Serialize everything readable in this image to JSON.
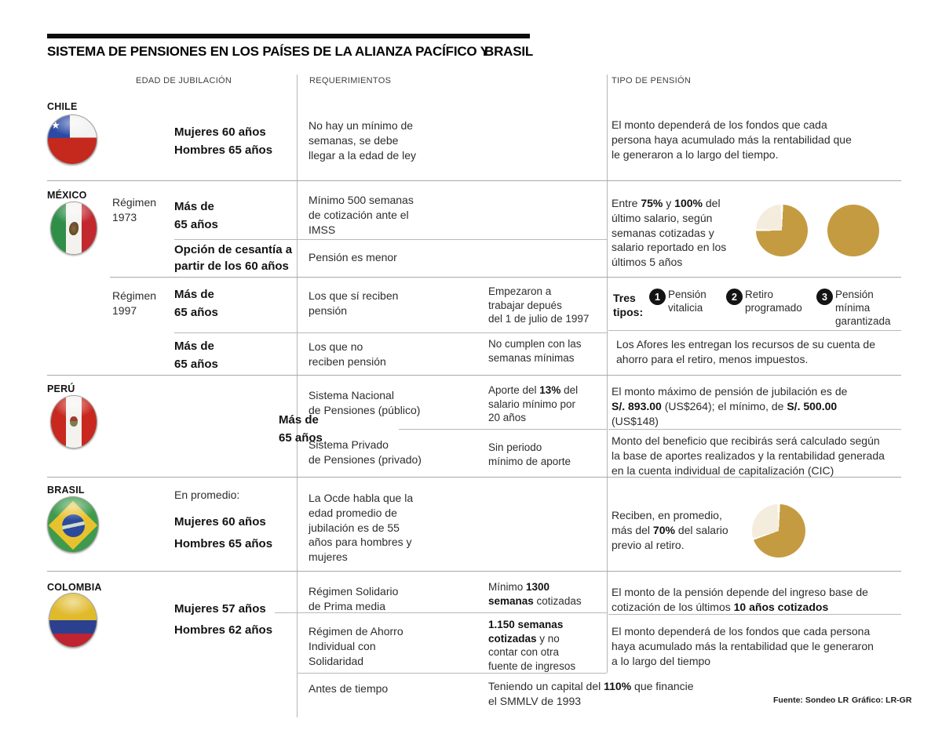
{
  "header": {
    "title_main": "SISTEMA DE PENSIONES EN LOS PAÍSES DE LA ALIANZA PACÍFICO Y",
    "title_suffix": "BRASIL",
    "col_edad": "EDAD DE JUBILACIÓN",
    "col_req": "REQUERIMIENTOS",
    "col_tipo": "TIPO DE PENSIÓN"
  },
  "chile": {
    "name": "CHILE",
    "edad": "Mujeres 60 años\nHombres  65 años",
    "req": "No hay un mínimo de\nsemanas, se debe\nllegar a la edad de ley",
    "tipo": "El monto dependerá de los fondos que cada\npersona haya acumulado más la rentabilidad que\nle generaron a lo largo del tiempo."
  },
  "mexico": {
    "name": "MÉXICO",
    "regimen_1973": {
      "label": "Régimen\n1973",
      "edad_1": "Más de\n65 años",
      "req_1": "Mínimo 500 semanas\nde cotización ante el\nIMSS",
      "edad_2": "Opción de cesantía a\npartir de los 60 años",
      "req_2": "Pensión es menor",
      "tipo": [
        {
          "t": "Entre "
        },
        {
          "t": "75%",
          "b": true
        },
        {
          "t": " y "
        },
        {
          "t": "100%",
          "b": true
        },
        {
          "t": " del\núltimo salario, según\nsemanas cotizadas y\nsalario reportado en los\núltimos 5 años"
        }
      ]
    },
    "regimen_1997": {
      "label": "Régimen\n1997",
      "edad_1": "Más de\n65 años",
      "req_1": "Los que sí reciben\npensión",
      "nota_1": "Empezaron a\ntrabajar depués\ndel 1 de julio de 1997",
      "tres_tipos_label": "Tres\ntipos:",
      "tres_tipos": [
        {
          "n": "1",
          "label": "Pensión\nvitalicia"
        },
        {
          "n": "2",
          "label": "Retiro\nprogramado"
        },
        {
          "n": "3",
          "label": "Pensión\nmínima\ngarantizada"
        }
      ],
      "edad_2": "Más de\n65 años",
      "req_2": "Los que no\nreciben pensión",
      "nota_2": "No cumplen con las\nsemanas mínimas",
      "tipo": "Los Afores les entregan los recursos de su cuenta de\nahorro para el retiro, menos impuestos."
    }
  },
  "peru": {
    "name": "PERÚ",
    "edad": "Más de\n65 años",
    "req_1": "Sistema Nacional\nde Pensiones (público)",
    "nota_1": [
      {
        "t": "Aporte del "
      },
      {
        "t": "13%",
        "b": true
      },
      {
        "t": " del\nsalario mínimo por\n20 años"
      }
    ],
    "tipo_1": [
      {
        "t": "El monto máximo de pensión de jubilación es de\n"
      },
      {
        "t": "S/. 893.00",
        "b": true
      },
      {
        "t": " (US$264); el mínimo, de "
      },
      {
        "t": "S/. 500.00",
        "b": true
      },
      {
        "t": "\n(US$148)"
      }
    ],
    "req_2": "Sistema Privado\nde Pensiones (privado)",
    "nota_2": "Sin periodo\nmínimo de aporte",
    "tipo_2": "Monto del beneficio que recibirás será calculado según\nla base de aportes realizados y la rentabilidad generada\nen la cuenta individual de capitalización (CIC)"
  },
  "brasil": {
    "name": "BRASIL",
    "edad_intro": "En promedio:",
    "edad_1": "Mujeres 60 años",
    "edad_2": "Hombres 65 años",
    "req": "La Ocde habla que la\nedad promedio de\njubilación  es de 55\naños para hombres y\nmujeres",
    "tipo": [
      {
        "t": "Reciben, en promedio,\nmás del "
      },
      {
        "t": "70%",
        "b": true
      },
      {
        "t": " del salario\nprevio al retiro."
      }
    ]
  },
  "colombia": {
    "name": "COLOMBIA",
    "edad_1": "Mujeres 57 años",
    "edad_2": "Hombres 62 años",
    "req_1": "Régimen Solidario\nde Prima media",
    "nota_1": [
      {
        "t": "Mínimo "
      },
      {
        "t": "1300\nsemanas",
        "b": true
      },
      {
        "t": " cotizadas"
      }
    ],
    "tipo_1": [
      {
        "t": "El monto de la pensión depende del ingreso base de\ncotización de los últimos "
      },
      {
        "t": "10 años cotizados",
        "b": true
      }
    ],
    "req_2": "Régimen de Ahorro\nIndividual con\nSolidaridad",
    "nota_2": [
      {
        "t": "1.150 semanas\ncotizadas",
        "b": true
      },
      {
        "t": " y no\ncontar con otra\nfuente de ingresos"
      }
    ],
    "tipo_2": "El monto dependerá de los fondos que cada persona\nhaya acumulado más la rentabilidad que le generaron\na lo largo del tiempo",
    "req_3": "Antes de tiempo",
    "nota_3": [
      {
        "t": "Teniendo un capital del "
      },
      {
        "t": "110%",
        "b": true
      },
      {
        "t": " que financie\nel SMMLV de 1993"
      }
    ]
  },
  "footer": {
    "fuente": "Fuente: Sondeo LR",
    "grafico": "Gráfico: LR-GR"
  },
  "colors": {
    "pie_gold": "#C59B42",
    "pie_cream": "#F4ECDD",
    "circle_black": "#141414"
  },
  "chart_data": [
    {
      "type": "pie",
      "title": "México: pensión mínima (75% del último salario)",
      "labels": [
        "pensión",
        "resto"
      ],
      "values": [
        75,
        25
      ]
    },
    {
      "type": "pie",
      "title": "México: pensión máxima (100% del último salario)",
      "labels": [
        "pensión"
      ],
      "values": [
        100
      ]
    },
    {
      "type": "pie",
      "title": "Brasil: más del 70% del salario previo al retiro",
      "labels": [
        "pensión",
        "resto"
      ],
      "values": [
        70,
        30
      ]
    }
  ]
}
